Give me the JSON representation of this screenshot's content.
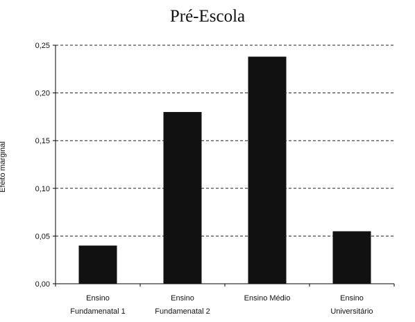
{
  "chart_data": {
    "type": "bar",
    "title": "Pré-Escola",
    "xlabel": "",
    "ylabel": "Efeito marginal",
    "categories": [
      [
        "Ensino",
        "Fundamenatal 1"
      ],
      [
        "Ensino",
        "Fundamenatal 2"
      ],
      [
        "Ensino Médio"
      ],
      [
        "Ensino",
        "Universitário"
      ]
    ],
    "values": [
      0.04,
      0.18,
      0.238,
      0.055
    ],
    "ylim": [
      0,
      0.25
    ],
    "yticks": [
      "0,00",
      "0,05",
      "0,10",
      "0,15",
      "0,20",
      "0,25"
    ],
    "ytick_values": [
      0,
      0.05,
      0.1,
      0.15,
      0.2,
      0.25
    ],
    "grid": "horizontal dashed",
    "bar_color": "#111111"
  }
}
